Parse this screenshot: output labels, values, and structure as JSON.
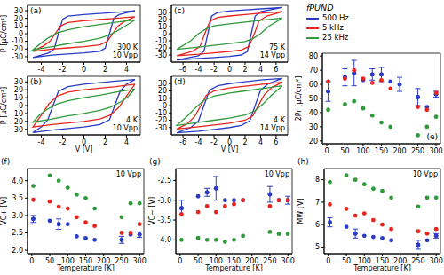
{
  "chart_data": [
    {
      "type": "line",
      "title": "(a)",
      "y_label": "P [μC/cm²]",
      "annotations": [
        "300 K",
        "10 Vpp"
      ],
      "xlim": [
        -5.3,
        5.3
      ],
      "xticks": [
        -4,
        -2,
        0,
        2,
        4
      ],
      "ylim": [
        -37,
        37
      ],
      "yticks": [
        -30,
        -20,
        -10,
        0,
        10,
        20,
        30
      ],
      "series": [
        {
          "color": "#2a3cc6",
          "x": [
            4.8,
            3,
            1.5,
            0,
            -1.5,
            -2,
            -2.4,
            -2.8,
            -3.3,
            -4.8,
            -3,
            -1.5,
            0,
            1.5,
            2,
            2.4,
            2.8,
            3.3,
            4.8
          ],
          "values": [
            30,
            28,
            26.5,
            25,
            23,
            19,
            0,
            -20,
            -25,
            -31,
            -28,
            -26.5,
            -25,
            -23,
            -19,
            0,
            20,
            25,
            30
          ]
        },
        {
          "color": "#e8231c",
          "x": [
            4.8,
            3,
            1.5,
            0,
            -1.5,
            -2.2,
            -2.7,
            -3.2,
            -3.8,
            -4.8,
            -3,
            -1.5,
            0,
            1.5,
            2.2,
            2.7,
            3.2,
            3.8,
            4.8
          ],
          "values": [
            22,
            20,
            18.5,
            17,
            14.5,
            10,
            0,
            -10,
            -16,
            -23,
            -20,
            -18.5,
            -17,
            -14.5,
            -10,
            0,
            10,
            16,
            22
          ]
        },
        {
          "color": "#2e9a3a",
          "x": [
            4.8,
            3,
            1.5,
            0,
            -1.5,
            -2.5,
            -3.3,
            -4,
            -4.8,
            -3,
            -1.5,
            0,
            1.5,
            2.5,
            3.3,
            4,
            4.8
          ],
          "values": [
            18,
            15,
            12,
            9,
            5,
            1,
            -5,
            -12,
            -21,
            -17,
            -13,
            -10,
            -6,
            -1,
            5,
            11,
            18
          ]
        }
      ]
    },
    {
      "type": "line",
      "title": "(b)",
      "y_label": "P [μC/cm²]",
      "x_label": "V [V]",
      "annotations": [
        "4 K",
        "10 Vpp"
      ],
      "xlim": [
        -5.3,
        5.3
      ],
      "xticks": [
        -4,
        -2,
        0,
        2,
        4
      ],
      "ylim": [
        -37,
        37
      ],
      "yticks": [
        -30,
        -20,
        -10,
        0,
        10,
        20,
        30
      ],
      "series": [
        {
          "color": "#2a3cc6",
          "x": [
            4.8,
            3,
            1.5,
            0,
            -1.5,
            -2.4,
            -2.9,
            -3.4,
            -4,
            -4.8,
            -3,
            -1.5,
            0,
            1.5,
            2.4,
            2.9,
            3.4,
            4,
            4.8
          ],
          "values": [
            33,
            31,
            29,
            27,
            24,
            18,
            0,
            -18,
            -27,
            -34,
            -31,
            -29,
            -27,
            -24,
            -18,
            0,
            18,
            27,
            33
          ]
        },
        {
          "color": "#e8231c",
          "x": [
            4.8,
            3,
            1.5,
            0,
            -1.5,
            -2.5,
            -3.3,
            -4,
            -4.8,
            -3,
            -1.5,
            0,
            1.5,
            2.5,
            3.3,
            4,
            4.8
          ],
          "values": [
            27,
            24,
            22,
            20,
            17,
            12,
            2,
            -12,
            -27,
            -24,
            -22,
            -20,
            -17,
            -12,
            -2,
            12,
            27
          ]
        },
        {
          "color": "#2e9a3a",
          "x": [
            4.8,
            3,
            1.5,
            0,
            -1.5,
            -2.5,
            -3.5,
            -4.2,
            -4.8,
            -3,
            -1.5,
            0,
            1.5,
            2.5,
            3.5,
            4.2,
            4.8
          ],
          "values": [
            21,
            17,
            13,
            10,
            6,
            2,
            -5,
            -12,
            -21,
            -17,
            -13,
            -10,
            -6,
            -2,
            5,
            12,
            21
          ]
        }
      ]
    },
    {
      "type": "line",
      "title": "(c)",
      "annotations": [
        "75 K",
        "14 Vpp"
      ],
      "xlim": [
        -7.5,
        7.5
      ],
      "xticks": [
        -6,
        -4,
        -2,
        0,
        2,
        4,
        6
      ],
      "ylim": [
        -40,
        40
      ],
      "yticks": [
        -30,
        -20,
        -10,
        0,
        10,
        20,
        30
      ],
      "series": [
        {
          "color": "#2a3cc6",
          "x": [
            6.8,
            4,
            2,
            0,
            -1.5,
            -2.3,
            -2.8,
            -3.3,
            -4,
            -6.8,
            -4,
            -2,
            0,
            1.5,
            2.3,
            2.8,
            3.3,
            4,
            6.8
          ],
          "values": [
            37,
            35,
            33.5,
            32,
            30,
            25,
            0,
            -25,
            -31,
            -37,
            -35,
            -33.5,
            -32,
            -30,
            -25,
            0,
            25,
            31,
            37
          ]
        },
        {
          "color": "#e8231c",
          "x": [
            6.8,
            4,
            2,
            0,
            -1.5,
            -2.5,
            -3.2,
            -3.8,
            -4.8,
            -6.8,
            -4,
            -2,
            0,
            1.5,
            2.5,
            3.2,
            3.8,
            4.8,
            6.8
          ],
          "values": [
            31,
            29,
            27,
            25,
            23,
            18,
            0,
            -18,
            -25,
            -31,
            -29,
            -27,
            -25,
            -23,
            -18,
            0,
            18,
            25,
            31
          ]
        },
        {
          "color": "#2e9a3a",
          "x": [
            6.8,
            4,
            2,
            0,
            -2,
            -3,
            -4,
            -5,
            -6.8,
            -4,
            -2,
            0,
            2,
            3,
            4,
            5,
            6.8
          ],
          "values": [
            22,
            19,
            16.5,
            14,
            11,
            7,
            0,
            -10,
            -22,
            -19,
            -16.5,
            -14,
            -11,
            -7,
            0,
            10,
            22
          ]
        }
      ]
    },
    {
      "type": "line",
      "title": "(d)",
      "x_label": "V [V]",
      "annotations": [
        "4 K",
        "14 Vpp"
      ],
      "xlim": [
        -7.5,
        7.5
      ],
      "xticks": [
        -6,
        -4,
        -2,
        0,
        2,
        4,
        6
      ],
      "ylim": [
        -40,
        40
      ],
      "yticks": [
        -30,
        -20,
        -10,
        0,
        10,
        20,
        30
      ],
      "series": [
        {
          "color": "#2a3cc6",
          "x": [
            6.8,
            4,
            2,
            0,
            -1.5,
            -2.6,
            -3.3,
            -4,
            -5,
            -6.8,
            -4,
            -2,
            0,
            1.5,
            2.6,
            3.3,
            4,
            5,
            6.8
          ],
          "values": [
            37,
            35,
            32.5,
            30,
            27,
            21,
            0,
            -21,
            -30,
            -37,
            -35,
            -32.5,
            -30,
            -27,
            -21,
            0,
            21,
            30,
            37
          ]
        },
        {
          "color": "#e8231c",
          "x": [
            6.8,
            4,
            2,
            0,
            -2,
            -3,
            -3.7,
            -4.5,
            -5.5,
            -6.8,
            -4,
            -2,
            0,
            2,
            3,
            3.7,
            4.5,
            5.5,
            6.8
          ],
          "values": [
            32,
            29,
            26.5,
            24,
            20,
            14,
            0,
            -15,
            -25,
            -32,
            -29,
            -26.5,
            -24,
            -20,
            -14,
            0,
            15,
            25,
            32
          ]
        },
        {
          "color": "#2e9a3a",
          "x": [
            6.8,
            4,
            2,
            0,
            -2,
            -3.3,
            -4.3,
            -5.3,
            -6.8,
            -4,
            -2,
            0,
            2,
            3.3,
            4.3,
            5.3,
            6.8
          ],
          "values": [
            27,
            23,
            20,
            17,
            13,
            7,
            -2,
            -13,
            -27,
            -23,
            -20,
            -17,
            -13,
            -7,
            2,
            13,
            27
          ]
        }
      ]
    },
    {
      "type": "scatter",
      "title": "(e)",
      "y_label": "2Pr [μC/cm²]",
      "marker": "circle",
      "legend": "top",
      "legend_title": "fPUND",
      "x": [
        4,
        50,
        75,
        100,
        125,
        150,
        175,
        200,
        250,
        275,
        300
      ],
      "xlim": [
        -12,
        312
      ],
      "xticks": [
        0,
        50,
        100,
        150,
        200,
        250,
        300
      ],
      "ylim": [
        18,
        82
      ],
      "yticks": [
        20,
        30,
        40,
        50,
        60,
        70,
        80
      ],
      "series": [
        {
          "name": "500 Hz",
          "color": "#2a3cc6",
          "values": [
            55,
            65,
            68,
            63,
            67,
            67,
            62,
            60,
            51,
            44,
            53
          ],
          "errors": [
            7,
            6,
            9,
            null,
            4,
            5,
            null,
            5,
            6,
            null,
            2
          ]
        },
        {
          "name": "5 kHz",
          "color": "#e8231c",
          "values": [
            62,
            64,
            70,
            64,
            61,
            63,
            57,
            null,
            44,
            42,
            54
          ]
        },
        {
          "name": "25 kHz",
          "color": "#2e9a3a",
          "values": [
            42,
            46,
            48,
            43,
            38,
            33,
            30,
            null,
            24,
            30,
            37
          ]
        }
      ]
    },
    {
      "type": "scatter",
      "title": "(f)",
      "y_label": "VC+ [V]",
      "x_label": "Temperature [K]",
      "annotations": [
        "10 Vpp"
      ],
      "marker": "circle",
      "x": [
        4,
        50,
        75,
        100,
        125,
        150,
        175,
        250,
        275,
        300
      ],
      "xlim": [
        -12,
        312
      ],
      "xticks": [
        0,
        50,
        100,
        150,
        200,
        250,
        300
      ],
      "ylim": [
        1.9,
        4.35
      ],
      "yticks": [
        {
          "value": 2,
          "label": "2.0"
        },
        2.5,
        {
          "value": 3,
          "label": "3.0"
        },
        3.5,
        {
          "value": 4,
          "label": "4.0"
        }
      ],
      "series": [
        {
          "color": "#2a3cc6",
          "values": [
            2.9,
            2.85,
            2.75,
            2.75,
            2.4,
            2.35,
            2.3,
            2.3,
            2.45,
            2.45
          ],
          "errors": [
            0.1,
            null,
            0.15,
            null,
            null,
            null,
            null,
            0.1,
            null,
            0.08
          ]
        },
        {
          "color": "#e8231c",
          "values": [
            3.45,
            3.4,
            3.25,
            3.2,
            2.95,
            2.8,
            2.7,
            2.5,
            2.5,
            2.75
          ]
        },
        {
          "color": "#2e9a3a",
          "values": [
            3.85,
            4.15,
            4.0,
            3.8,
            3.6,
            3.5,
            3.2,
            2.95,
            3.35,
            3.35
          ]
        }
      ]
    },
    {
      "type": "scatter",
      "title": "(g)",
      "y_label": "VC− [V]",
      "x_label": "Temperature [K]",
      "annotations": [
        "10 Vpp"
      ],
      "marker": "circle",
      "x": [
        4,
        50,
        75,
        100,
        125,
        150,
        175,
        250,
        275,
        300
      ],
      "xlim": [
        -12,
        312
      ],
      "xticks": [
        0,
        50,
        100,
        150,
        200,
        250,
        300
      ],
      "ylim": [
        -4.35,
        -2.2
      ],
      "yticks": [
        {
          "value": -4,
          "label": "-4.0"
        },
        -3.5,
        {
          "value": -3,
          "label": "-3.0"
        },
        -2.5
      ],
      "series": [
        {
          "color": "#2a3cc6",
          "values": [
            -3.2,
            -2.9,
            -2.8,
            -2.7,
            -3.0,
            -3.0,
            -3.0,
            -2.85,
            -3.0,
            -3.0
          ],
          "errors": [
            0.2,
            null,
            0.1,
            0.3,
            null,
            null,
            null,
            0.2,
            null,
            0.1
          ]
        },
        {
          "color": "#e8231c",
          "values": [
            -3.35,
            -3.3,
            -3.15,
            -3.3,
            -3.15,
            -3.1,
            -3.0,
            -3.15,
            -3.0,
            -3.0
          ]
        },
        {
          "color": "#2e9a3a",
          "values": [
            -4.0,
            -3.95,
            -4.0,
            -4.0,
            -4.05,
            -4.0,
            -3.9,
            -3.8,
            -3.85,
            -3.85
          ]
        }
      ]
    },
    {
      "type": "scatter",
      "title": "(h)",
      "y_label": "MW [V]",
      "x_label": "Temperature [K]",
      "annotations": [
        "10 Vpp"
      ],
      "marker": "circle",
      "x": [
        4,
        50,
        75,
        100,
        125,
        150,
        175,
        250,
        275,
        300
      ],
      "xlim": [
        -12,
        312
      ],
      "xticks": [
        0,
        50,
        100,
        150,
        200,
        250,
        300
      ],
      "ylim": [
        4.7,
        8.5
      ],
      "yticks": [
        5,
        6,
        7,
        8
      ],
      "series": [
        {
          "color": "#2a3cc6",
          "values": [
            6.1,
            5.9,
            5.6,
            5.5,
            5.45,
            5.4,
            5.3,
            5.1,
            5.3,
            5.5
          ],
          "errors": [
            0.2,
            null,
            0.2,
            null,
            null,
            null,
            null,
            0.2,
            null,
            0.1
          ]
        },
        {
          "color": "#e8231c",
          "values": [
            6.9,
            6.7,
            6.4,
            6.5,
            6.2,
            6.0,
            5.8,
            5.7,
            5.6,
            5.8
          ]
        },
        {
          "color": "#2e9a3a",
          "values": [
            7.9,
            8.2,
            8.0,
            7.8,
            7.6,
            7.5,
            7.2,
            6.8,
            7.2,
            7.2
          ]
        }
      ]
    }
  ]
}
